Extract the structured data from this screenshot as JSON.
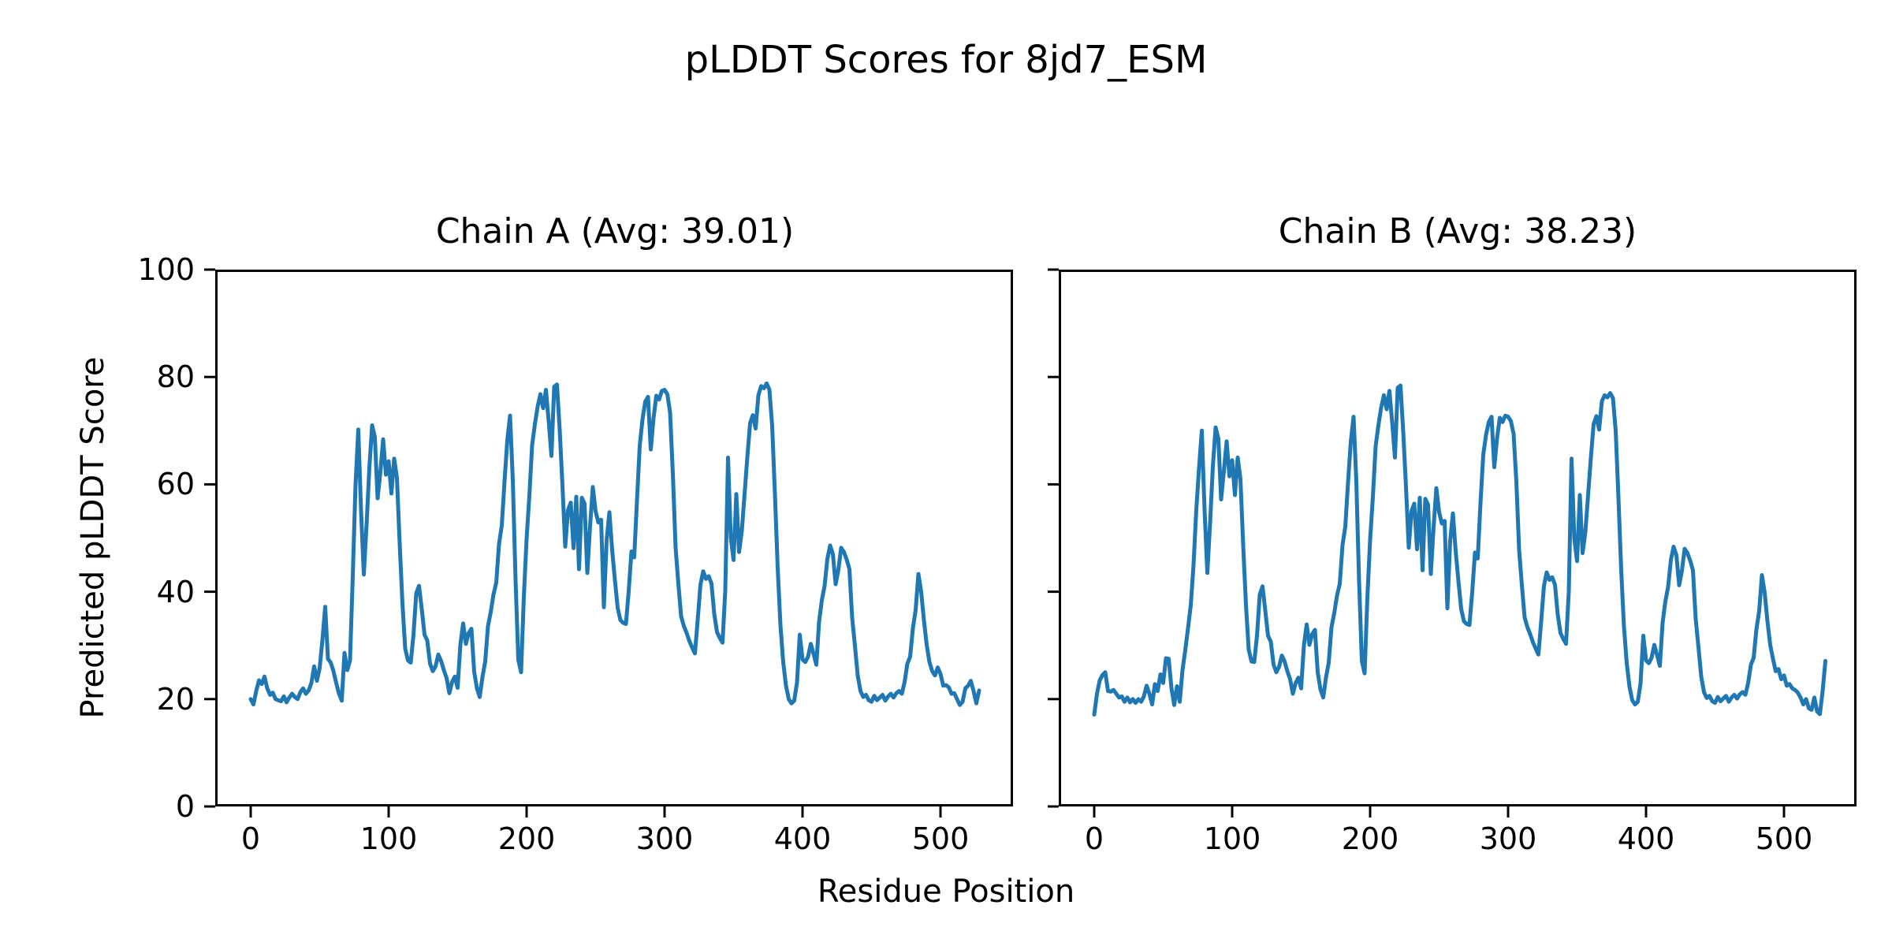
{
  "figure": {
    "title": "pLDDT Scores for 8jd7_ESM",
    "xlabel": "Residue Position",
    "ylabel": "Predicted pLDDT Score",
    "line_color": "#1f77b4",
    "frame_color": "#000000",
    "background": "#ffffff"
  },
  "chart_data": [
    {
      "type": "line",
      "title": "Chain A (Avg: 39.01)",
      "chain": "A",
      "avg": 39.01,
      "legend": "none",
      "grid": false,
      "ylim": [
        0,
        100
      ],
      "yticks": [
        0,
        20,
        40,
        60,
        80,
        100
      ],
      "xticks": [
        0,
        100,
        200,
        300,
        400,
        500
      ],
      "show_ytick_labels": true,
      "x_start": 0,
      "x_step": 2,
      "values": [
        20.0,
        19.0,
        21.5,
        23.5,
        22.8,
        24.2,
        22.0,
        20.8,
        21.2,
        20.0,
        19.8,
        19.6,
        20.5,
        19.4,
        20.3,
        21.0,
        20.4,
        20.0,
        21.3,
        22.0,
        21.0,
        21.6,
        23.0,
        26.1,
        23.4,
        25.8,
        31.0,
        37.2,
        27.5,
        26.8,
        25.2,
        23.0,
        21.0,
        19.7,
        28.6,
        25.4,
        27.2,
        43.0,
        60.0,
        70.2,
        55.0,
        43.2,
        52.5,
        63.0,
        71.0,
        68.8,
        57.4,
        62.3,
        68.4,
        61.8,
        64.3,
        58.3,
        64.8,
        61.2,
        49.0,
        37.8,
        29.4,
        27.2,
        26.8,
        32.0,
        39.7,
        41.1,
        36.8,
        32.0,
        30.9,
        26.6,
        25.2,
        26.1,
        28.3,
        27.1,
        25.4,
        23.9,
        21.1,
        23.2,
        24.2,
        22.1,
        30.2,
        34.1,
        30.3,
        32.3,
        33.1,
        25.1,
        22.0,
        20.4,
        24.1,
        27.0,
        33.6,
        36.2,
        39.5,
        41.7,
        48.9,
        52.3,
        60.6,
        68.2,
        72.8,
        60.8,
        42.1,
        27.3,
        25.0,
        39.1,
        49.9,
        57.9,
        67.3,
        71.2,
        74.5,
        76.8,
        74.2,
        77.6,
        71.8,
        65.3,
        78.2,
        78.6,
        70.1,
        59.7,
        48.4,
        55.2,
        56.6,
        48.1,
        57.7,
        44.2,
        57.5,
        56.4,
        43.5,
        52.2,
        59.5,
        55.0,
        52.9,
        53.4,
        37.1,
        49.6,
        54.8,
        47.8,
        42.2,
        37.0,
        34.7,
        34.2,
        34.0,
        40.1,
        47.5,
        46.4,
        57.0,
        67.2,
        72.1,
        75.4,
        76.3,
        66.5,
        72.3,
        76.5,
        75.8,
        77.4,
        77.6,
        76.8,
        73.4,
        62.0,
        48.2,
        41.5,
        35.4,
        33.6,
        32.3,
        30.8,
        29.6,
        28.5,
        34.7,
        41.3,
        43.8,
        42.4,
        42.9,
        41.5,
        35.9,
        32.5,
        31.4,
        30.5,
        40.2,
        65.0,
        50.1,
        45.9,
        58.2,
        47.4,
        51.3,
        58.2,
        65.1,
        71.4,
        72.9,
        70.4,
        76.6,
        78.3,
        77.9,
        78.8,
        77.6,
        70.9,
        58.2,
        44.4,
        33.7,
        26.9,
        22.5,
        20.0,
        19.2,
        19.7,
        23.1,
        32.0,
        27.4,
        26.9,
        27.9,
        30.3,
        28.4,
        26.4,
        34.4,
        38.4,
        41.1,
        46.1,
        48.6,
        47.0,
        41.4,
        44.1,
        48.2,
        47.4,
        46.0,
        44.2,
        35.1,
        29.9,
        24.4,
        21.5,
        20.4,
        20.8,
        19.8,
        19.5,
        20.6,
        19.8,
        20.3,
        20.8,
        19.7,
        20.5,
        21.0,
        20.3,
        21.1,
        21.5,
        21.0,
        23.2,
        26.6,
        27.9,
        33.2,
        36.6,
        43.3,
        40.0,
        34.7,
        30.1,
        26.9,
        25.2,
        24.4,
        25.9,
        24.7,
        22.5,
        22.6,
        22.2,
        21.0,
        21.1,
        20.0,
        18.9,
        19.5,
        22.0,
        22.5,
        23.4,
        21.5,
        19.2,
        21.6
      ]
    },
    {
      "type": "line",
      "title": "Chain B (Avg: 38.23)",
      "chain": "B",
      "avg": 38.23,
      "legend": "none",
      "grid": false,
      "ylim": [
        0,
        100
      ],
      "yticks": [
        0,
        20,
        40,
        60,
        80,
        100
      ],
      "xticks": [
        0,
        100,
        200,
        300,
        400,
        500
      ],
      "show_ytick_labels": false,
      "x_start": 0,
      "x_step": 2,
      "values": [
        17.1,
        21.0,
        23.5,
        24.5,
        25.0,
        21.5,
        21.4,
        21.7,
        21.0,
        20.3,
        20.5,
        19.5,
        20.3,
        19.4,
        20.0,
        19.3,
        20.0,
        19.5,
        20.5,
        22.5,
        21.0,
        19.0,
        22.8,
        21.5,
        24.6,
        23.0,
        27.6,
        27.5,
        22.0,
        18.9,
        22.4,
        19.5,
        25.4,
        29.1,
        33.2,
        37.5,
        45.0,
        55.3,
        63.1,
        70.0,
        55.2,
        43.5,
        52.8,
        63.3,
        70.6,
        68.5,
        57.2,
        62.5,
        68.0,
        61.5,
        64.5,
        58.0,
        65.0,
        61.0,
        48.6,
        37.5,
        29.2,
        27.0,
        26.9,
        31.8,
        39.5,
        41.0,
        36.5,
        31.8,
        30.7,
        26.4,
        25.0,
        26.0,
        28.1,
        27.0,
        25.2,
        23.7,
        21.0,
        23.0,
        24.0,
        22.0,
        30.0,
        33.9,
        30.1,
        32.1,
        32.9,
        25.0,
        21.8,
        20.3,
        24.0,
        26.8,
        33.4,
        36.0,
        39.3,
        41.5,
        48.7,
        52.1,
        60.4,
        68.0,
        72.6,
        60.5,
        41.9,
        27.1,
        24.8,
        38.9,
        49.7,
        57.7,
        67.1,
        71.0,
        74.3,
        76.6,
        74.0,
        77.4,
        71.5,
        65.0,
        78.0,
        78.4,
        69.8,
        59.5,
        48.2,
        55.0,
        56.4,
        47.9,
        57.5,
        44.0,
        57.3,
        56.2,
        43.3,
        52.0,
        59.3,
        54.8,
        52.7,
        53.2,
        36.9,
        49.4,
        54.6,
        47.6,
        42.0,
        36.8,
        34.5,
        34.0,
        33.8,
        39.9,
        47.3,
        46.2,
        56.5,
        65.5,
        69.2,
        71.6,
        72.6,
        63.2,
        68.6,
        72.4,
        71.6,
        72.8,
        72.6,
        71.8,
        69.4,
        60.5,
        47.8,
        41.2,
        35.2,
        33.4,
        32.1,
        30.6,
        29.4,
        28.3,
        34.5,
        41.1,
        43.6,
        42.2,
        42.7,
        41.3,
        35.7,
        32.3,
        31.2,
        30.3,
        40.0,
        64.8,
        49.9,
        45.7,
        58.0,
        47.2,
        51.1,
        58.0,
        64.9,
        71.2,
        72.7,
        70.2,
        75.5,
        76.6,
        76.2,
        77.0,
        76.1,
        70.0,
        57.5,
        44.0,
        33.5,
        26.7,
        22.3,
        19.8,
        19.0,
        19.5,
        22.9,
        31.8,
        27.2,
        26.7,
        27.7,
        30.1,
        28.2,
        26.2,
        34.2,
        38.2,
        40.9,
        45.9,
        48.4,
        46.8,
        41.2,
        43.9,
        48.0,
        47.2,
        45.8,
        44.0,
        34.9,
        29.7,
        24.2,
        21.3,
        20.2,
        20.6,
        19.6,
        19.3,
        20.4,
        19.6,
        20.1,
        20.6,
        19.5,
        20.3,
        20.8,
        20.1,
        20.9,
        21.3,
        20.8,
        23.0,
        26.4,
        27.7,
        33.0,
        36.4,
        43.1,
        39.8,
        34.5,
        30.1,
        27.5,
        25.2,
        25.6,
        23.7,
        24.4,
        22.5,
        22.8,
        22.0,
        21.7,
        21.2,
        20.3,
        19.0,
        20.0,
        18.3,
        18.0,
        20.3,
        17.7,
        17.2,
        21.5,
        27.1
      ]
    }
  ]
}
